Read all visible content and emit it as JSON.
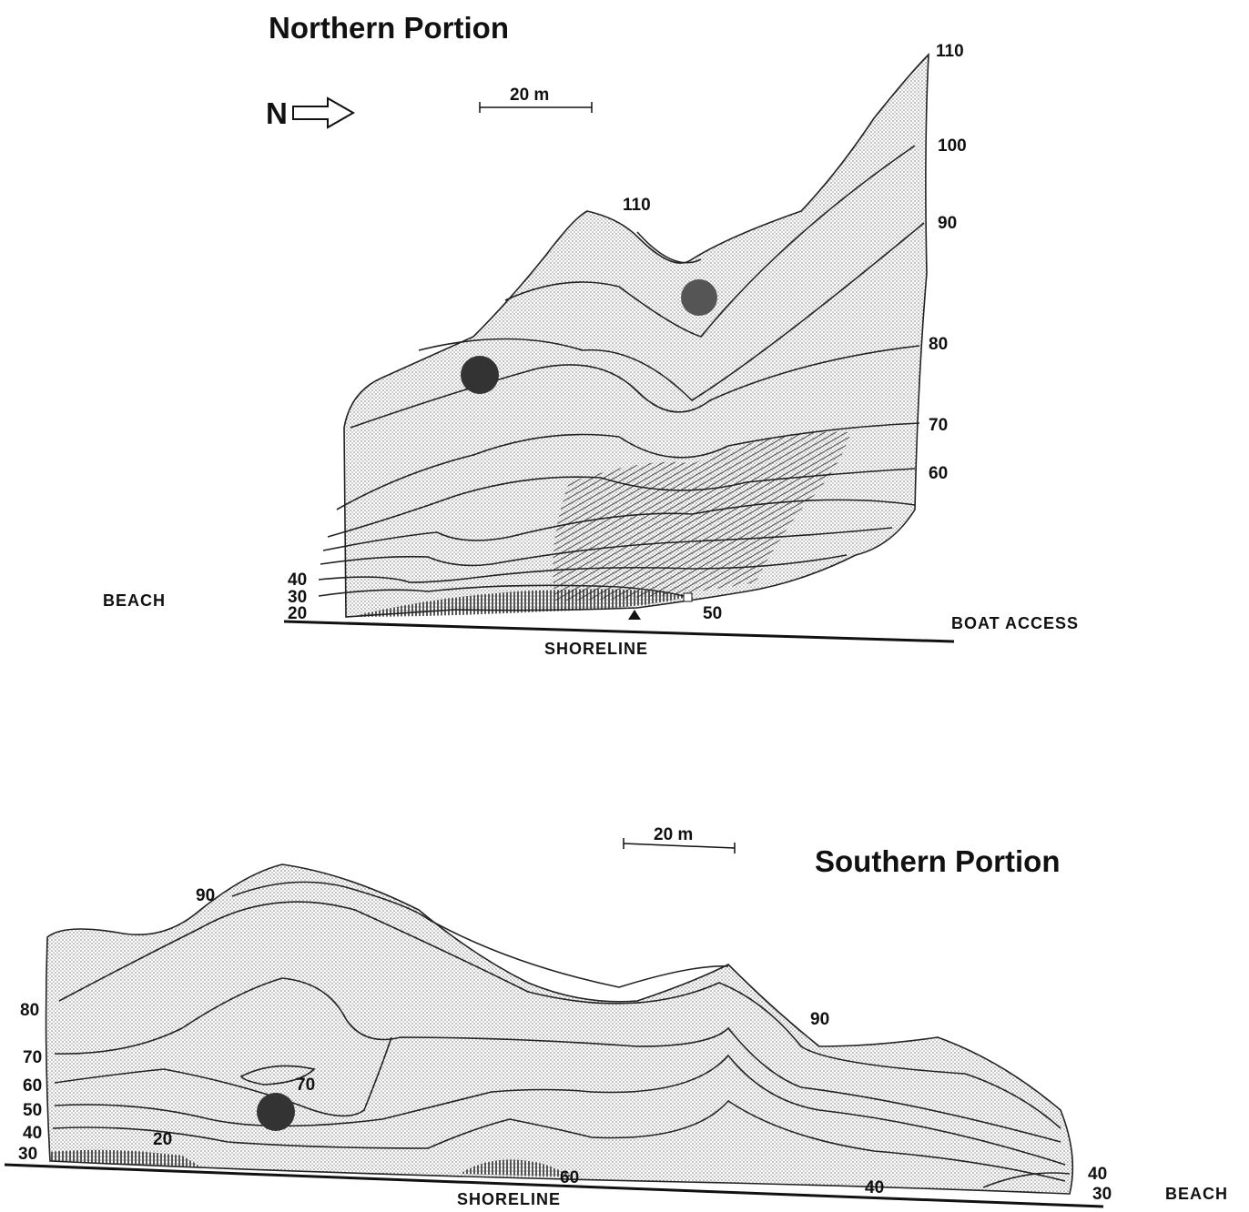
{
  "northern": {
    "title": "Northern Portion",
    "north_label": "N",
    "scale_label": "20 m",
    "contour_labels": [
      "110",
      "100",
      "90",
      "80",
      "70",
      "60",
      "110",
      "40",
      "30",
      "20",
      "50"
    ],
    "beach": "BEACH",
    "boat_access": "BOAT ACCESS",
    "shoreline": "SHORELINE"
  },
  "southern": {
    "title": "Southern Portion",
    "scale_label": "20 m",
    "contour_labels": [
      "90",
      "80",
      "70",
      "60",
      "50",
      "40",
      "30",
      "20",
      "70",
      "60",
      "90",
      "40",
      "40",
      "30"
    ],
    "beach": "BEACH",
    "shoreline": "SHORELINE"
  }
}
